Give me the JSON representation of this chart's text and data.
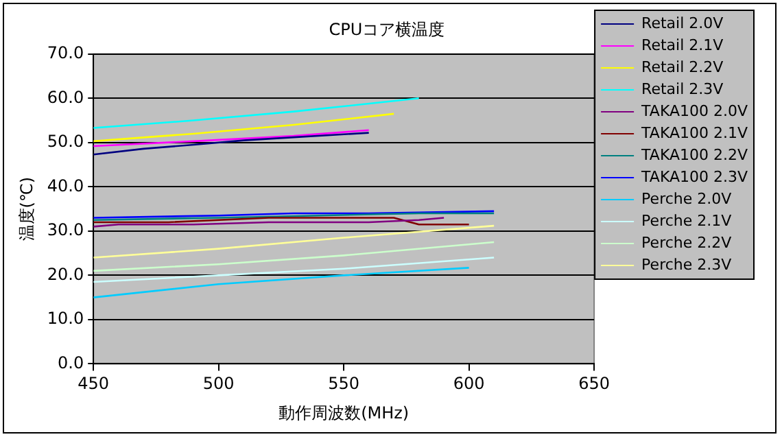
{
  "chart_data": {
    "type": "line",
    "title": "CPUコア横温度",
    "xlabel": "動作周波数(MHz)",
    "ylabel": "温度(℃)",
    "xlim": [
      450,
      650
    ],
    "xticks": [
      450,
      500,
      550,
      600,
      650
    ],
    "ylim": [
      0,
      70
    ],
    "yticks": [
      {
        "value": 0,
        "label": "0.0"
      },
      {
        "value": 10,
        "label": "10.0"
      },
      {
        "value": 20,
        "label": "20.0"
      },
      {
        "value": 30,
        "label": "30.0"
      },
      {
        "value": 40,
        "label": "40.0"
      },
      {
        "value": 50,
        "label": "50.0"
      },
      {
        "value": 60,
        "label": "60.0"
      },
      {
        "value": 70,
        "label": "70.0"
      }
    ],
    "grid": "y",
    "legend": "right",
    "marker": "none",
    "line_style": "solid",
    "series": [
      {
        "name": "Retail 2.0V",
        "color": "#000080",
        "x": [
          450,
          470,
          490,
          510,
          530,
          560
        ],
        "values": [
          47.3,
          48.6,
          49.5,
          50.5,
          51.2,
          52.2
        ]
      },
      {
        "name": "Retail 2.1V",
        "color": "#ff00ff",
        "x": [
          450,
          490,
          530,
          560
        ],
        "values": [
          49.2,
          50.3,
          51.5,
          52.8
        ]
      },
      {
        "name": "Retail 2.2V",
        "color": "#ffff00",
        "x": [
          450,
          490,
          530,
          570
        ],
        "values": [
          50.3,
          52,
          54,
          56.5
        ]
      },
      {
        "name": "Retail 2.3V",
        "color": "#00ffff",
        "x": [
          450,
          490,
          530,
          580
        ],
        "values": [
          53.3,
          55,
          57,
          60
        ]
      },
      {
        "name": "TAKA100 2.0V",
        "color": "#800080",
        "x": [
          450,
          460,
          490,
          520,
          560,
          580,
          590
        ],
        "values": [
          31,
          31.5,
          31.5,
          32,
          32,
          32.5,
          33
        ]
      },
      {
        "name": "TAKA100 2.1V",
        "color": "#800000",
        "x": [
          450,
          480,
          520,
          570,
          580,
          600
        ],
        "values": [
          32,
          32,
          33,
          33,
          31.5,
          31.5
        ]
      },
      {
        "name": "TAKA100 2.2V",
        "color": "#008080",
        "x": [
          450,
          500,
          540,
          580,
          610
        ],
        "values": [
          32.5,
          33,
          33.5,
          34,
          34
        ]
      },
      {
        "name": "TAKA100 2.3V",
        "color": "#0000ff",
        "x": [
          450,
          500,
          530,
          560,
          610
        ],
        "values": [
          33,
          33.5,
          34,
          34,
          34.5
        ]
      },
      {
        "name": "Perche 2.0V",
        "color": "#00ccff",
        "x": [
          450,
          500,
          550,
          600
        ],
        "values": [
          15,
          18,
          20,
          21.7
        ]
      },
      {
        "name": "Perche 2.1V",
        "color": "#ccffff",
        "x": [
          450,
          500,
          550,
          610
        ],
        "values": [
          18.5,
          20,
          21.5,
          24
        ]
      },
      {
        "name": "Perche 2.2V",
        "color": "#ccffcc",
        "x": [
          450,
          500,
          550,
          610
        ],
        "values": [
          21,
          22.5,
          24.5,
          27.5
        ]
      },
      {
        "name": "Perche 2.3V",
        "color": "#ffff99",
        "x": [
          450,
          500,
          550,
          610
        ],
        "values": [
          24,
          26,
          28.5,
          31.2
        ]
      }
    ]
  }
}
